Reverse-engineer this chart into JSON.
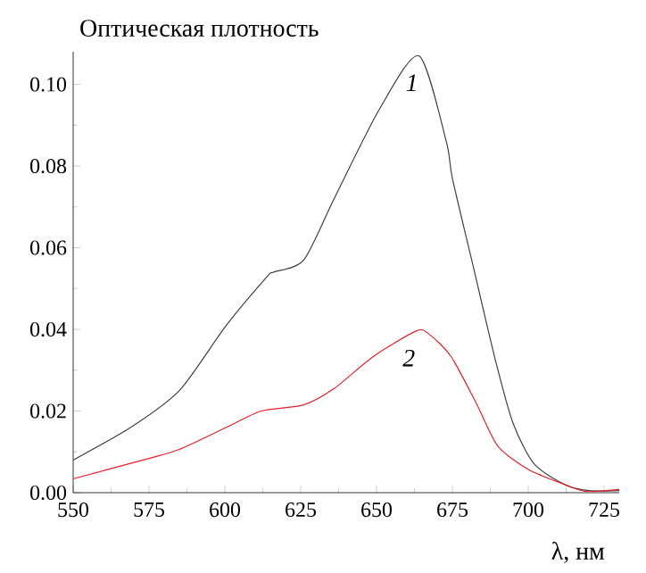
{
  "chart_data": {
    "type": "line",
    "ylabel": "Оптическая плотность",
    "xlabel": "λ, нм",
    "xlim": [
      550,
      730
    ],
    "ylim": [
      0,
      0.108
    ],
    "xticks": [
      550,
      575,
      600,
      625,
      650,
      675,
      700,
      725
    ],
    "yticks": [
      {
        "value": 0,
        "label": "0.00"
      },
      {
        "value": 0.02,
        "label": "0.02"
      },
      {
        "value": 0.04,
        "label": "0.04"
      },
      {
        "value": 0.06,
        "label": "0.06"
      },
      {
        "value": 0.08,
        "label": "0.08"
      },
      {
        "value": 0.1,
        "label": "0.10"
      }
    ],
    "grid": false,
    "marker": "none",
    "line_style": "solid",
    "series": [
      {
        "name": "1",
        "color": "#404040",
        "x": [
          550,
          569,
          585,
          600.5,
          614,
          616,
          626,
          636,
          651,
          664,
          673,
          675,
          682,
          689,
          695,
          702,
          712,
          720,
          730
        ],
        "values": [
          0.008,
          0.016,
          0.025,
          0.041,
          0.053,
          0.054,
          0.057,
          0.072,
          0.094,
          0.107,
          0.086,
          0.077,
          0.055,
          0.033,
          0.017,
          0.007,
          0.002,
          0.0005,
          0.0005
        ]
      },
      {
        "name": "2",
        "color": "#e8202a",
        "x": [
          550,
          575,
          585,
          600.5,
          612,
          626,
          636,
          649,
          663,
          667,
          674.5,
          683,
          690,
          700,
          712,
          719,
          730
        ],
        "values": [
          0.0034,
          0.0084,
          0.0106,
          0.016,
          0.02,
          0.0215,
          0.0255,
          0.0334,
          0.0396,
          0.039,
          0.0334,
          0.0217,
          0.0114,
          0.0057,
          0.002,
          0.0003,
          0.0008
        ]
      }
    ]
  }
}
